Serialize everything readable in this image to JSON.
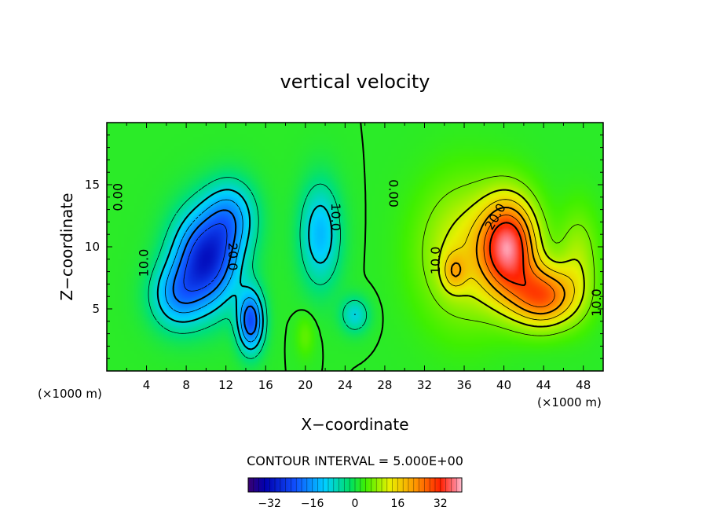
{
  "chart_data": {
    "type": "heatmap",
    "title": "vertical velocity",
    "xlabel": "X−coordinate",
    "ylabel": "Z−coordinate",
    "x_unit_left": "(×1000 m)",
    "x_unit_right": "(×1000 m)",
    "xlim": [
      0,
      50
    ],
    "ylim": [
      0,
      20
    ],
    "x_ticks": [
      4,
      8,
      12,
      16,
      20,
      24,
      28,
      32,
      36,
      40,
      44,
      48
    ],
    "y_ticks": [
      5,
      10,
      15
    ],
    "contour_interval_label": "CONTOUR INTERVAL = 5.000E+00",
    "contour_interval": 5,
    "colorbar": {
      "range": [
        -40,
        40
      ],
      "ticks": [
        -32,
        -16,
        0,
        16,
        32
      ]
    },
    "contour_labels": [
      {
        "text": "0.00",
        "x": 1.2,
        "y": 14.0,
        "rot": -90
      },
      {
        "text": "10.0",
        "x": 3.8,
        "y": 8.7,
        "rot": -90
      },
      {
        "text": "20.0",
        "x": 12.6,
        "y": 9.2,
        "rot": 90
      },
      {
        "text": "10.0",
        "x": 23.0,
        "y": 12.4,
        "rot": 90
      },
      {
        "text": "0.00",
        "x": 28.8,
        "y": 14.3,
        "rot": 90
      },
      {
        "text": "10.0",
        "x": 33.2,
        "y": 8.9,
        "rot": -90
      },
      {
        "text": "20.0",
        "x": 39.2,
        "y": 12.4,
        "rot": -60
      },
      {
        "text": "10.0",
        "x": 49.4,
        "y": 5.5,
        "rot": -90
      }
    ],
    "features": [
      {
        "type": "downdraft",
        "cx": 10.0,
        "cy": 9.0,
        "peak": -30
      },
      {
        "type": "downdraft",
        "cx": 14.5,
        "cy": 4.0,
        "peak": -24
      },
      {
        "type": "downdraft",
        "cx": 21.5,
        "cy": 11.0,
        "peak": -14
      },
      {
        "type": "updraft",
        "cx": 40.5,
        "cy": 10.0,
        "peak": 34
      },
      {
        "type": "updraft",
        "cx": 44.0,
        "cy": 6.0,
        "peak": 26
      }
    ]
  }
}
